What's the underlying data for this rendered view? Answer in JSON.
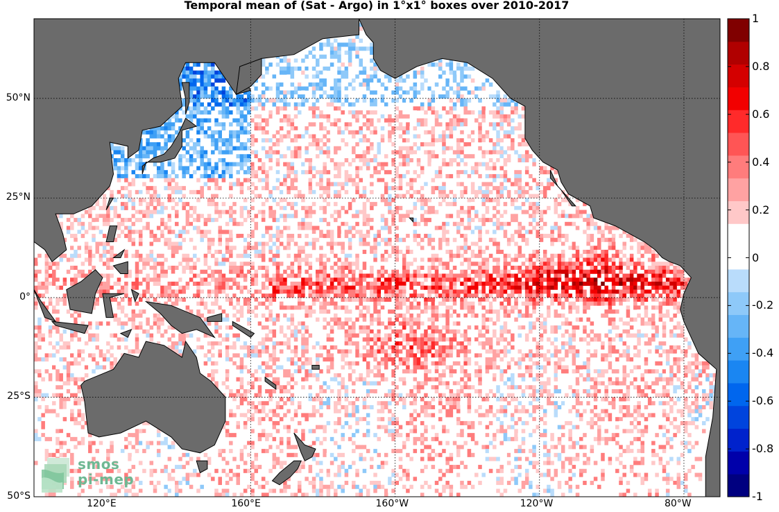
{
  "title": "Temporal mean of (Sat - Argo) in 1°x1° boxes over 2010-2017",
  "map": {
    "lon_range": [
      100,
      290
    ],
    "lat_range": [
      -50,
      70
    ],
    "gridlines": {
      "lons": [
        160,
        200,
        240,
        280
      ],
      "lats": [
        50,
        25,
        0,
        -25
      ]
    },
    "ocean_color": "#ffffff",
    "land_color": "#6b6b6b"
  },
  "x_ticks": [
    {
      "label": "120°E",
      "lon": 120
    },
    {
      "label": "160°E",
      "lon": 160
    },
    {
      "label": "160°W",
      "lon": 200
    },
    {
      "label": "120°W",
      "lon": 240
    },
    {
      "label": "80°W",
      "lon": 280
    }
  ],
  "y_ticks": [
    {
      "label": "50°N",
      "lat": 50
    },
    {
      "label": "25°N",
      "lat": 25
    },
    {
      "label": "0°",
      "lat": 0
    },
    {
      "label": "25°S",
      "lat": -25
    },
    {
      "label": "50°S",
      "lat": -50
    }
  ],
  "colorbar": {
    "range": [
      -1,
      1
    ],
    "ticks": [
      {
        "label": "1",
        "value": 1
      },
      {
        "label": "0.8",
        "value": 0.8
      },
      {
        "label": "0.6",
        "value": 0.6
      },
      {
        "label": "0.4",
        "value": 0.4
      },
      {
        "label": "0.2",
        "value": 0.2
      },
      {
        "label": "0",
        "value": 0
      },
      {
        "label": "-0.2",
        "value": -0.2
      },
      {
        "label": "-0.4",
        "value": -0.4
      },
      {
        "label": "-0.6",
        "value": -0.6
      },
      {
        "label": "-0.8",
        "value": -0.8
      },
      {
        "label": "-1",
        "value": -1
      }
    ],
    "colors": [
      "#000080",
      "#0000aa",
      "#0022cc",
      "#0044dd",
      "#0066ee",
      "#1a86f2",
      "#3fa0f5",
      "#66b5f7",
      "#8ec9f9",
      "#b9dcfb",
      "#ffffff",
      "#ffffff",
      "#ffc8c8",
      "#ffa2a2",
      "#ff7c7c",
      "#ff5555",
      "#ff2a2a",
      "#f20000",
      "#d40000",
      "#b00000",
      "#800000"
    ]
  },
  "logo": {
    "line1": "smos",
    "line2": "pi-mep"
  }
}
